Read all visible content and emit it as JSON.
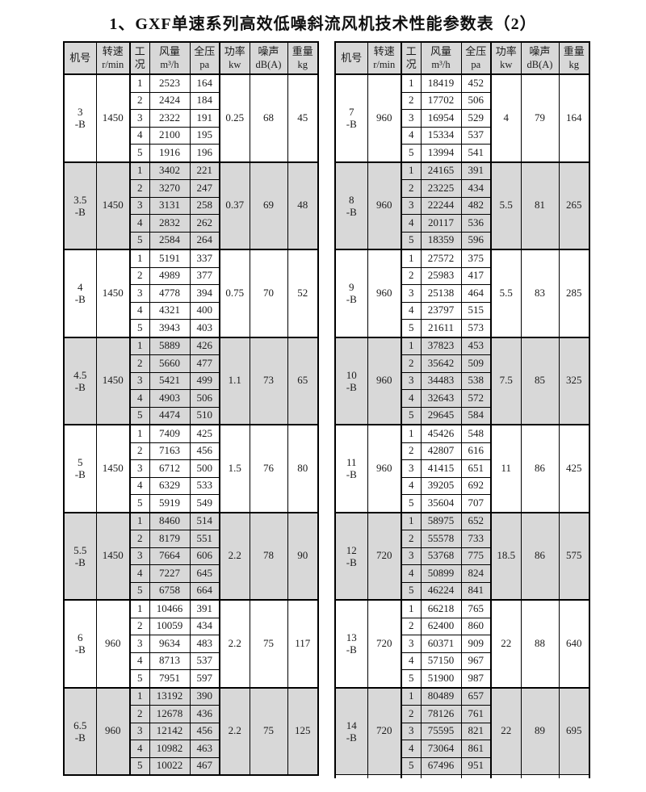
{
  "page": {
    "title": "1、GXF单速系列高效低噪斜流风机技术性能参数表（2）"
  },
  "colors": {
    "shaded_section_bg": "#d8d8d8",
    "grid_line": "#000000",
    "text": "#1b1b1b"
  },
  "columns": [
    {
      "label": "机号",
      "unit": ""
    },
    {
      "label": "转速",
      "unit": "r/min"
    },
    {
      "label": "工况",
      "unit": ""
    },
    {
      "label": "风量",
      "unit": "m³/h"
    },
    {
      "label": "全压",
      "unit": "pa"
    },
    {
      "label": "功率",
      "unit": "kw"
    },
    {
      "label": "噪声",
      "unit": "dB(A)"
    },
    {
      "label": "重量",
      "unit": "kg"
    }
  ],
  "tables": {
    "left": [
      {
        "model": "3",
        "suffix": "-B",
        "speed": "1450",
        "power": "0.25",
        "noise": "68",
        "weight": "45",
        "points": [
          {
            "cond": "1",
            "volume": "2523",
            "pressure": "164"
          },
          {
            "cond": "2",
            "volume": "2424",
            "pressure": "184"
          },
          {
            "cond": "3",
            "volume": "2322",
            "pressure": "191"
          },
          {
            "cond": "4",
            "volume": "2100",
            "pressure": "195"
          },
          {
            "cond": "5",
            "volume": "1916",
            "pressure": "196"
          }
        ]
      },
      {
        "model": "3.5",
        "suffix": "-B",
        "speed": "1450",
        "power": "0.37",
        "noise": "69",
        "weight": "48",
        "points": [
          {
            "cond": "1",
            "volume": "3402",
            "pressure": "221"
          },
          {
            "cond": "2",
            "volume": "3270",
            "pressure": "247"
          },
          {
            "cond": "3",
            "volume": "3131",
            "pressure": "258"
          },
          {
            "cond": "4",
            "volume": "2832",
            "pressure": "262"
          },
          {
            "cond": "5",
            "volume": "2584",
            "pressure": "264"
          }
        ]
      },
      {
        "model": "4",
        "suffix": "-B",
        "speed": "1450",
        "power": "0.75",
        "noise": "70",
        "weight": "52",
        "points": [
          {
            "cond": "1",
            "volume": "5191",
            "pressure": "337"
          },
          {
            "cond": "2",
            "volume": "4989",
            "pressure": "377"
          },
          {
            "cond": "3",
            "volume": "4778",
            "pressure": "394"
          },
          {
            "cond": "4",
            "volume": "4321",
            "pressure": "400"
          },
          {
            "cond": "5",
            "volume": "3943",
            "pressure": "403"
          }
        ]
      },
      {
        "model": "4.5",
        "suffix": "-B",
        "speed": "1450",
        "power": "1.1",
        "noise": "73",
        "weight": "65",
        "points": [
          {
            "cond": "1",
            "volume": "5889",
            "pressure": "426"
          },
          {
            "cond": "2",
            "volume": "5660",
            "pressure": "477"
          },
          {
            "cond": "3",
            "volume": "5421",
            "pressure": "499"
          },
          {
            "cond": "4",
            "volume": "4903",
            "pressure": "506"
          },
          {
            "cond": "5",
            "volume": "4474",
            "pressure": "510"
          }
        ]
      },
      {
        "model": "5",
        "suffix": "-B",
        "speed": "1450",
        "power": "1.5",
        "noise": "76",
        "weight": "80",
        "points": [
          {
            "cond": "1",
            "volume": "7409",
            "pressure": "425"
          },
          {
            "cond": "2",
            "volume": "7163",
            "pressure": "456"
          },
          {
            "cond": "3",
            "volume": "6712",
            "pressure": "500"
          },
          {
            "cond": "4",
            "volume": "6329",
            "pressure": "533"
          },
          {
            "cond": "5",
            "volume": "5919",
            "pressure": "549"
          }
        ]
      },
      {
        "model": "5.5",
        "suffix": "-B",
        "speed": "1450",
        "power": "2.2",
        "noise": "78",
        "weight": "90",
        "points": [
          {
            "cond": "1",
            "volume": "8460",
            "pressure": "514"
          },
          {
            "cond": "2",
            "volume": "8179",
            "pressure": "551"
          },
          {
            "cond": "3",
            "volume": "7664",
            "pressure": "606"
          },
          {
            "cond": "4",
            "volume": "7227",
            "pressure": "645"
          },
          {
            "cond": "5",
            "volume": "6758",
            "pressure": "664"
          }
        ]
      },
      {
        "model": "6",
        "suffix": "-B",
        "speed": "960",
        "power": "2.2",
        "noise": "75",
        "weight": "117",
        "points": [
          {
            "cond": "1",
            "volume": "10466",
            "pressure": "391"
          },
          {
            "cond": "2",
            "volume": "10059",
            "pressure": "434"
          },
          {
            "cond": "3",
            "volume": "9634",
            "pressure": "483"
          },
          {
            "cond": "4",
            "volume": "8713",
            "pressure": "537"
          },
          {
            "cond": "5",
            "volume": "7951",
            "pressure": "597"
          }
        ]
      },
      {
        "model": "6.5",
        "suffix": "-B",
        "speed": "960",
        "power": "2.2",
        "noise": "75",
        "weight": "125",
        "points": [
          {
            "cond": "1",
            "volume": "13192",
            "pressure": "390"
          },
          {
            "cond": "2",
            "volume": "12678",
            "pressure": "436"
          },
          {
            "cond": "3",
            "volume": "12142",
            "pressure": "456"
          },
          {
            "cond": "4",
            "volume": "10982",
            "pressure": "463"
          },
          {
            "cond": "5",
            "volume": "10022",
            "pressure": "467"
          }
        ]
      }
    ],
    "right": [
      {
        "model": "7",
        "suffix": "-B",
        "speed": "960",
        "power": "4",
        "noise": "79",
        "weight": "164",
        "points": [
          {
            "cond": "1",
            "volume": "18419",
            "pressure": "452"
          },
          {
            "cond": "2",
            "volume": "17702",
            "pressure": "506"
          },
          {
            "cond": "3",
            "volume": "16954",
            "pressure": "529"
          },
          {
            "cond": "4",
            "volume": "15334",
            "pressure": "537"
          },
          {
            "cond": "5",
            "volume": "13994",
            "pressure": "541"
          }
        ]
      },
      {
        "model": "8",
        "suffix": "-B",
        "speed": "960",
        "power": "5.5",
        "noise": "81",
        "weight": "265",
        "points": [
          {
            "cond": "1",
            "volume": "24165",
            "pressure": "391"
          },
          {
            "cond": "2",
            "volume": "23225",
            "pressure": "434"
          },
          {
            "cond": "3",
            "volume": "22244",
            "pressure": "482"
          },
          {
            "cond": "4",
            "volume": "20117",
            "pressure": "536"
          },
          {
            "cond": "5",
            "volume": "18359",
            "pressure": "596"
          }
        ]
      },
      {
        "model": "9",
        "suffix": "-B",
        "speed": "960",
        "power": "5.5",
        "noise": "83",
        "weight": "285",
        "points": [
          {
            "cond": "1",
            "volume": "27572",
            "pressure": "375"
          },
          {
            "cond": "2",
            "volume": "25983",
            "pressure": "417"
          },
          {
            "cond": "3",
            "volume": "25138",
            "pressure": "464"
          },
          {
            "cond": "4",
            "volume": "23797",
            "pressure": "515"
          },
          {
            "cond": "5",
            "volume": "21611",
            "pressure": "573"
          }
        ]
      },
      {
        "model": "10",
        "suffix": "-B",
        "speed": "960",
        "power": "7.5",
        "noise": "85",
        "weight": "325",
        "points": [
          {
            "cond": "1",
            "volume": "37823",
            "pressure": "453"
          },
          {
            "cond": "2",
            "volume": "35642",
            "pressure": "509"
          },
          {
            "cond": "3",
            "volume": "34483",
            "pressure": "538"
          },
          {
            "cond": "4",
            "volume": "32643",
            "pressure": "572"
          },
          {
            "cond": "5",
            "volume": "29645",
            "pressure": "584"
          }
        ]
      },
      {
        "model": "11",
        "suffix": "-B",
        "speed": "960",
        "power": "11",
        "noise": "86",
        "weight": "425",
        "points": [
          {
            "cond": "1",
            "volume": "45426",
            "pressure": "548"
          },
          {
            "cond": "2",
            "volume": "42807",
            "pressure": "616"
          },
          {
            "cond": "3",
            "volume": "41415",
            "pressure": "651"
          },
          {
            "cond": "4",
            "volume": "39205",
            "pressure": "692"
          },
          {
            "cond": "5",
            "volume": "35604",
            "pressure": "707"
          }
        ]
      },
      {
        "model": "12",
        "suffix": "-B",
        "speed": "720",
        "power": "18.5",
        "noise": "86",
        "weight": "575",
        "points": [
          {
            "cond": "1",
            "volume": "58975",
            "pressure": "652"
          },
          {
            "cond": "2",
            "volume": "55578",
            "pressure": "733"
          },
          {
            "cond": "3",
            "volume": "53768",
            "pressure": "775"
          },
          {
            "cond": "4",
            "volume": "50899",
            "pressure": "824"
          },
          {
            "cond": "5",
            "volume": "46224",
            "pressure": "841"
          }
        ]
      },
      {
        "model": "13",
        "suffix": "-B",
        "speed": "720",
        "power": "22",
        "noise": "88",
        "weight": "640",
        "points": [
          {
            "cond": "1",
            "volume": "66218",
            "pressure": "765"
          },
          {
            "cond": "2",
            "volume": "62400",
            "pressure": "860"
          },
          {
            "cond": "3",
            "volume": "60371",
            "pressure": "909"
          },
          {
            "cond": "4",
            "volume": "57150",
            "pressure": "967"
          },
          {
            "cond": "5",
            "volume": "51900",
            "pressure": "987"
          }
        ]
      },
      {
        "model": "14",
        "suffix": "-B",
        "speed": "720",
        "power": "22",
        "noise": "89",
        "weight": "695",
        "points": [
          {
            "cond": "1",
            "volume": "80489",
            "pressure": "657"
          },
          {
            "cond": "2",
            "volume": "78126",
            "pressure": "761"
          },
          {
            "cond": "3",
            "volume": "75595",
            "pressure": "821"
          },
          {
            "cond": "4",
            "volume": "73064",
            "pressure": "861"
          },
          {
            "cond": "5",
            "volume": "67496",
            "pressure": "951"
          }
        ]
      }
    ]
  }
}
